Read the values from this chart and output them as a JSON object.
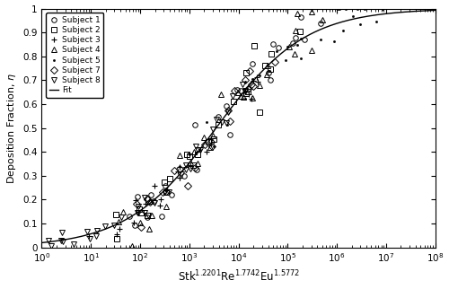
{
  "xlim_log": [
    0,
    8
  ],
  "ylim": [
    0,
    1
  ],
  "yticks": [
    0,
    0.1,
    0.2,
    0.3,
    0.4,
    0.5,
    0.6,
    0.7,
    0.8,
    0.9,
    1.0
  ],
  "xlabel": "Stk$^{1.2201}$Re$^{1.7742}$Eu$^{1.5772}$",
  "ylabel": "Deposition Fraction, $\\eta$",
  "fit_label": "Fit",
  "subjects": [
    {
      "label": "Subject 1",
      "marker": "o",
      "mfc": "none",
      "mec": "black",
      "ms": 4,
      "mew": 0.7
    },
    {
      "label": "Subject 2",
      "marker": "s",
      "mfc": "none",
      "mec": "black",
      "ms": 4,
      "mew": 0.7
    },
    {
      "label": "Subject 3",
      "marker": "+",
      "mfc": "black",
      "mec": "black",
      "ms": 5,
      "mew": 0.8
    },
    {
      "label": "Subject 4",
      "marker": "^",
      "mfc": "none",
      "mec": "black",
      "ms": 4,
      "mew": 0.7
    },
    {
      "label": "Subject 5",
      "marker": ".",
      "mfc": "black",
      "mec": "black",
      "ms": 3,
      "mew": 0.5
    },
    {
      "label": "Subject 7",
      "marker": "D",
      "mfc": "none",
      "mec": "black",
      "ms": 4,
      "mew": 0.7
    },
    {
      "label": "Subject 8",
      "marker": "v",
      "mfc": "none",
      "mec": "black",
      "ms": 4,
      "mew": 0.7
    }
  ],
  "fit_k": 3500,
  "fit_n": 0.48,
  "background_color": "white",
  "line_color": "black"
}
